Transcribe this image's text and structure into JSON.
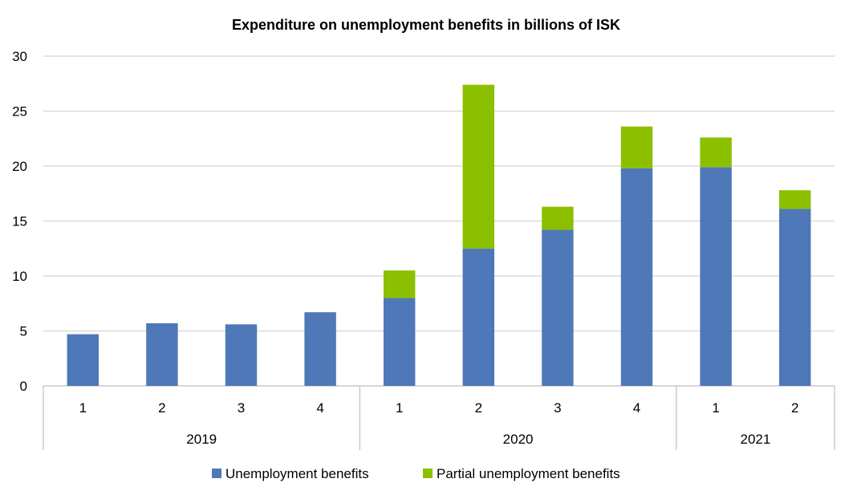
{
  "chart_data": {
    "type": "bar",
    "stacked": true,
    "title": "Expenditure on unemployment benefits in billions of ISK",
    "xlabel": "",
    "ylabel": "",
    "ylim": [
      0,
      30
    ],
    "yticks": [
      "0",
      "5",
      "10",
      "15",
      "20",
      "25",
      "30"
    ],
    "grid": true,
    "legend_position": "bottom",
    "categories": [
      "1",
      "2",
      "3",
      "4",
      "1",
      "2",
      "3",
      "4",
      "1",
      "2"
    ],
    "groups": [
      {
        "label": "2019",
        "count": 4
      },
      {
        "label": "2020",
        "count": 4
      },
      {
        "label": "2021",
        "count": 2
      }
    ],
    "series": [
      {
        "name": "Unemployment benefits",
        "color": "#4f78b8",
        "values": [
          4.7,
          5.7,
          5.6,
          6.7,
          8.0,
          12.5,
          14.2,
          19.8,
          19.9,
          16.1
        ]
      },
      {
        "name": "Partial unemployment benefits",
        "color": "#8cbf00",
        "values": [
          0,
          0,
          0,
          0,
          2.5,
          14.9,
          2.1,
          3.8,
          2.7,
          1.7
        ]
      }
    ]
  }
}
